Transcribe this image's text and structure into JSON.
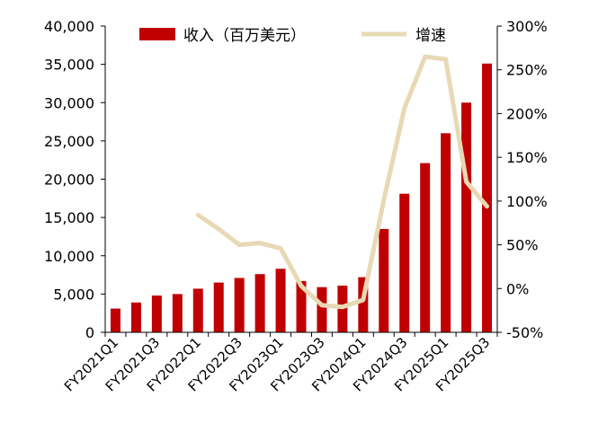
{
  "colors": {
    "bar": "#c00000",
    "line": "#e8d9b5",
    "axis": "#000000"
  },
  "legend": {
    "bar_label": "收入（百万美元）",
    "line_label": "增速"
  },
  "chart_data": {
    "type": "bar",
    "x": [
      "FY2021Q1",
      "FY2021Q2",
      "FY2021Q3",
      "FY2021Q4",
      "FY2022Q1",
      "FY2022Q2",
      "FY2022Q3",
      "FY2022Q4",
      "FY2023Q1",
      "FY2023Q2",
      "FY2023Q3",
      "FY2023Q4",
      "FY2024Q1",
      "FY2024Q2",
      "FY2024Q3",
      "FY2024Q4",
      "FY2025Q1",
      "FY2025Q2",
      "FY2025Q3"
    ],
    "x_tick_labels": [
      "FY2021Q1",
      "FY2021Q3",
      "FY2022Q1",
      "FY2022Q3",
      "FY2023Q1",
      "FY2023Q3",
      "FY2024Q1",
      "FY2024Q3",
      "FY2025Q1",
      "FY2025Q3"
    ],
    "series": [
      {
        "name": "收入（百万美元）",
        "type": "bar",
        "axis": "left",
        "values": [
          3100,
          3900,
          4800,
          5000,
          5700,
          6500,
          7100,
          7600,
          8300,
          6700,
          5900,
          6100,
          7200,
          13500,
          18100,
          22100,
          26000,
          30000,
          35100
        ]
      },
      {
        "name": "增速",
        "type": "line",
        "axis": "right",
        "unit": "%",
        "values": [
          null,
          null,
          null,
          null,
          84,
          68,
          50,
          52,
          46,
          3,
          -19,
          -21,
          -13,
          101,
          206,
          265,
          262,
          122,
          94
        ]
      }
    ],
    "y_left": {
      "min": 0,
      "max": 40000,
      "ticks": [
        "0",
        "5,000",
        "10,000",
        "15,000",
        "20,000",
        "25,000",
        "30,000",
        "35,000",
        "40,000"
      ]
    },
    "y_right": {
      "min": -50,
      "max": 300,
      "ticks": [
        "-50%",
        "0%",
        "50%",
        "100%",
        "150%",
        "200%",
        "250%",
        "300%"
      ]
    },
    "grid": false,
    "legend_position": "top"
  }
}
